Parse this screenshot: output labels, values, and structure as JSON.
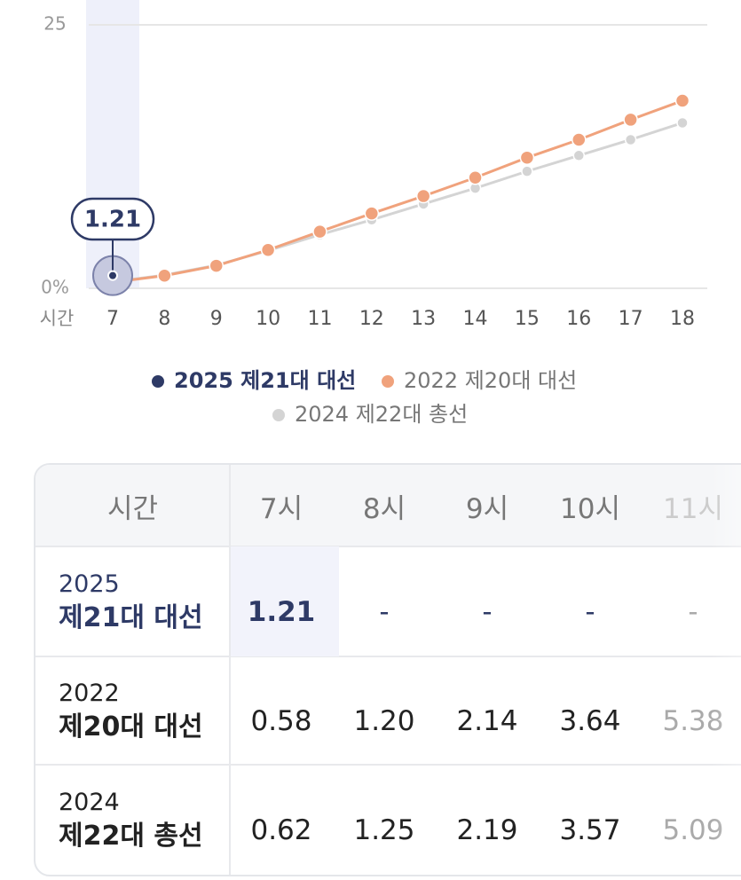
{
  "chart_data": {
    "type": "line",
    "x_label": "시간",
    "categories": [
      "7",
      "8",
      "9",
      "10",
      "11",
      "12",
      "13",
      "14",
      "15",
      "16",
      "17",
      "18"
    ],
    "series": [
      {
        "name": "2025 제21대 대선",
        "color": "#2e3a66",
        "values": [
          1.21,
          null,
          null,
          null,
          null,
          null,
          null,
          null,
          null,
          null,
          null,
          null
        ]
      },
      {
        "name": "2022 제20대 대선",
        "color": "#f0a27c",
        "values": [
          0.58,
          1.2,
          2.14,
          3.64,
          5.38,
          7.1,
          8.75,
          10.5,
          12.4,
          14.1,
          16.0,
          17.8
        ]
      },
      {
        "name": "2024 제22대 총선",
        "color": "#d4d4d4",
        "values": [
          0.62,
          1.25,
          2.19,
          3.57,
          5.09,
          6.5,
          8.0,
          9.5,
          11.1,
          12.6,
          14.1,
          15.7
        ]
      }
    ],
    "ylim": [
      0,
      25
    ],
    "yticks": [
      {
        "value": 0,
        "label": "0%"
      },
      25
    ],
    "grid": true
  },
  "table": {
    "header": [
      "시간",
      "7시",
      "8시",
      "9시",
      "10시",
      "11시"
    ],
    "rows": [
      {
        "year": "2025",
        "name": "제21대 대선",
        "cells": [
          "1.21",
          "-",
          "-",
          "-",
          "-"
        ]
      },
      {
        "year": "2022",
        "name": "제20대 대선",
        "cells": [
          "0.58",
          "1.20",
          "2.14",
          "3.64",
          "5.38"
        ]
      },
      {
        "year": "2024",
        "name": "제22대 총선",
        "cells": [
          "0.62",
          "1.25",
          "2.19",
          "3.57",
          "5.09"
        ]
      }
    ]
  }
}
